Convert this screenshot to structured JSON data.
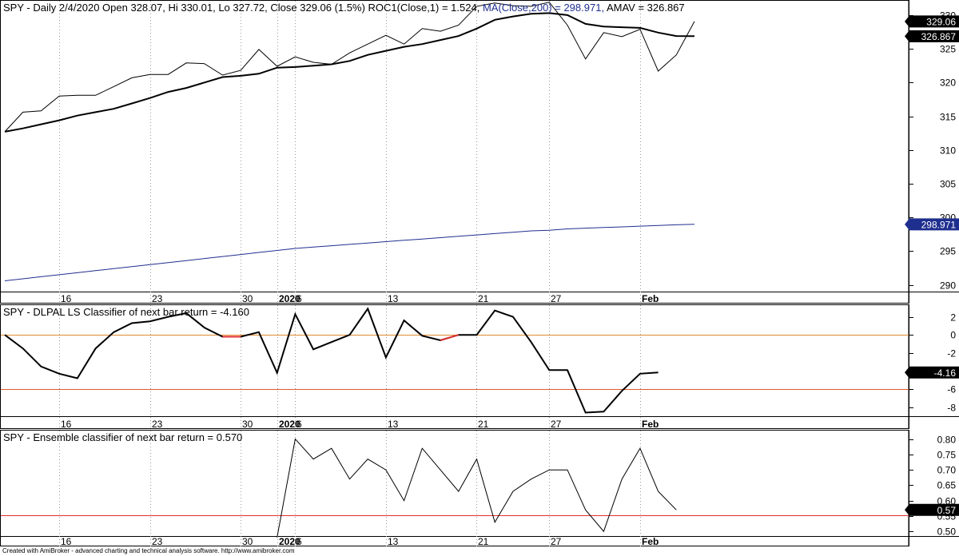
{
  "chart_data": [
    {
      "type": "line",
      "title": "SPY - Daily 2/4/2020 Open 328.07, Hi 330.01, Lo 327.72, Close 329.06 (1.5%) ROC1(Close,1) = 1.524,",
      "title_ma": "MA(Close,200) = 298.971,",
      "title_amav": "AMAV = 326.867",
      "ylim": [
        289,
        332
      ],
      "yticks": [
        290,
        295,
        300,
        305,
        310,
        315,
        320,
        325,
        330
      ],
      "grid": true,
      "series": [
        {
          "key": "close",
          "color": "#000000",
          "values": [
            312.7,
            315.6,
            315.8,
            318.0,
            318.1,
            318.1,
            319.4,
            320.7,
            321.2,
            321.2,
            322.9,
            322.8,
            321.1,
            321.8,
            324.9,
            322.4,
            323.8,
            323.0,
            322.7,
            324.4,
            325.7,
            327.0,
            325.7,
            328.0,
            327.6,
            328.5,
            331.3,
            331.8,
            331.4,
            331.3,
            331.9,
            328.5,
            323.5,
            327.4,
            326.8,
            327.9,
            321.7,
            324.1,
            329.06
          ]
        },
        {
          "key": "amav",
          "color": "#000000",
          "values": [
            312.7,
            313.2,
            313.8,
            314.4,
            315.1,
            315.6,
            316.1,
            316.9,
            317.7,
            318.6,
            319.2,
            320.0,
            320.8,
            321.0,
            321.3,
            322.2,
            322.3,
            322.5,
            322.7,
            323.2,
            324.1,
            324.7,
            325.3,
            325.7,
            326.3,
            326.9,
            328.0,
            329.3,
            329.8,
            330.2,
            330.3,
            330.0,
            328.7,
            328.3,
            328.2,
            328.1,
            327.4,
            326.9,
            326.867
          ],
          "width": 2
        },
        {
          "key": "ma200",
          "color": "#1f2f8f",
          "values": [
            290.6,
            290.9,
            291.2,
            291.5,
            291.8,
            292.1,
            292.4,
            292.7,
            293.0,
            293.3,
            293.6,
            293.9,
            294.2,
            294.5,
            294.8,
            295.1,
            295.4,
            295.6,
            295.8,
            296.0,
            296.2,
            296.4,
            296.6,
            296.8,
            297.0,
            297.2,
            297.4,
            297.6,
            297.8,
            298.0,
            298.1,
            298.3,
            298.4,
            298.5,
            298.6,
            298.7,
            298.8,
            298.9,
            298.971
          ]
        }
      ],
      "tags": [
        {
          "label": "329.06",
          "value": 329.06,
          "bg": "#000000"
        },
        {
          "label": "326.867",
          "value": 326.867,
          "bg": "#000000"
        },
        {
          "label": "298.971",
          "value": 298.971,
          "bg": "#1f2f8f"
        }
      ]
    },
    {
      "type": "line",
      "title": "SPY - DLPAL LS Classifier of next bar return = -4.160",
      "ylim": [
        -9,
        3.2
      ],
      "yticks": [
        2,
        0,
        -2,
        -4,
        -6,
        -8
      ],
      "hlines": [
        {
          "value": 0,
          "color": "#e08a2e"
        },
        {
          "value": -6,
          "color": "#e05a2e"
        }
      ],
      "series": [
        {
          "key": "dlpal",
          "color": "#000000",
          "width": 2,
          "values": [
            0.0,
            -1.5,
            -3.5,
            -4.3,
            -4.8,
            -1.5,
            0.3,
            1.3,
            1.5,
            2.0,
            2.4,
            0.8,
            -0.2,
            -0.2,
            0.3,
            -4.2,
            2.3,
            -1.6,
            -0.8,
            0.0,
            2.9,
            -2.5,
            1.6,
            -0.1,
            -0.6,
            0.0,
            0.0,
            2.7,
            2.0,
            -0.8,
            -3.9,
            -3.9,
            -8.6,
            -8.5,
            -6.2,
            -4.3,
            -4.16
          ],
          "red_segments": [
            [
              12,
              13
            ],
            [
              24,
              25
            ]
          ]
        }
      ],
      "tags": [
        {
          "label": "-4.16",
          "value": -4.16,
          "bg": "#000000"
        }
      ]
    },
    {
      "type": "line",
      "title": "SPY - Ensemble classifier of next bar return = 0.570",
      "ylim": [
        0.485,
        0.825
      ],
      "yticks": [
        0.8,
        0.75,
        0.7,
        0.65,
        0.6,
        0.55,
        0.5
      ],
      "hlines": [
        {
          "value": 0.553,
          "color": "#e03030"
        }
      ],
      "series": [
        {
          "key": "ensemble",
          "color": "#000000",
          "start_index": 15,
          "values": [
            0.48,
            0.8,
            0.735,
            0.77,
            0.67,
            0.735,
            0.7,
            0.6,
            0.77,
            0.7,
            0.63,
            0.735,
            0.53,
            0.63,
            0.67,
            0.7,
            0.7,
            0.57,
            0.5,
            0.67,
            0.77,
            0.63,
            0.57
          ]
        }
      ],
      "tags": [
        {
          "label": "0.57",
          "value": 0.57,
          "bg": "#000000"
        }
      ]
    }
  ],
  "x_axis": {
    "labels": [
      {
        "text": "16",
        "index": 3,
        "bold": false
      },
      {
        "text": "23",
        "index": 8,
        "bold": false
      },
      {
        "text": "30",
        "index": 13,
        "bold": false
      },
      {
        "text": "2020",
        "index": 15,
        "bold": true
      },
      {
        "text": "6",
        "index": 16,
        "bold": false
      },
      {
        "text": "13",
        "index": 21,
        "bold": false
      },
      {
        "text": "21",
        "index": 26,
        "bold": false
      },
      {
        "text": "27",
        "index": 30,
        "bold": false
      },
      {
        "text": "Feb",
        "index": 35,
        "bold": true
      }
    ],
    "gridlines": [
      3,
      8,
      13,
      15,
      16,
      21,
      26,
      30,
      35
    ]
  },
  "footer": "Created with AmiBroker - advanced charting and technical analysis software. http://www.amibroker.com"
}
